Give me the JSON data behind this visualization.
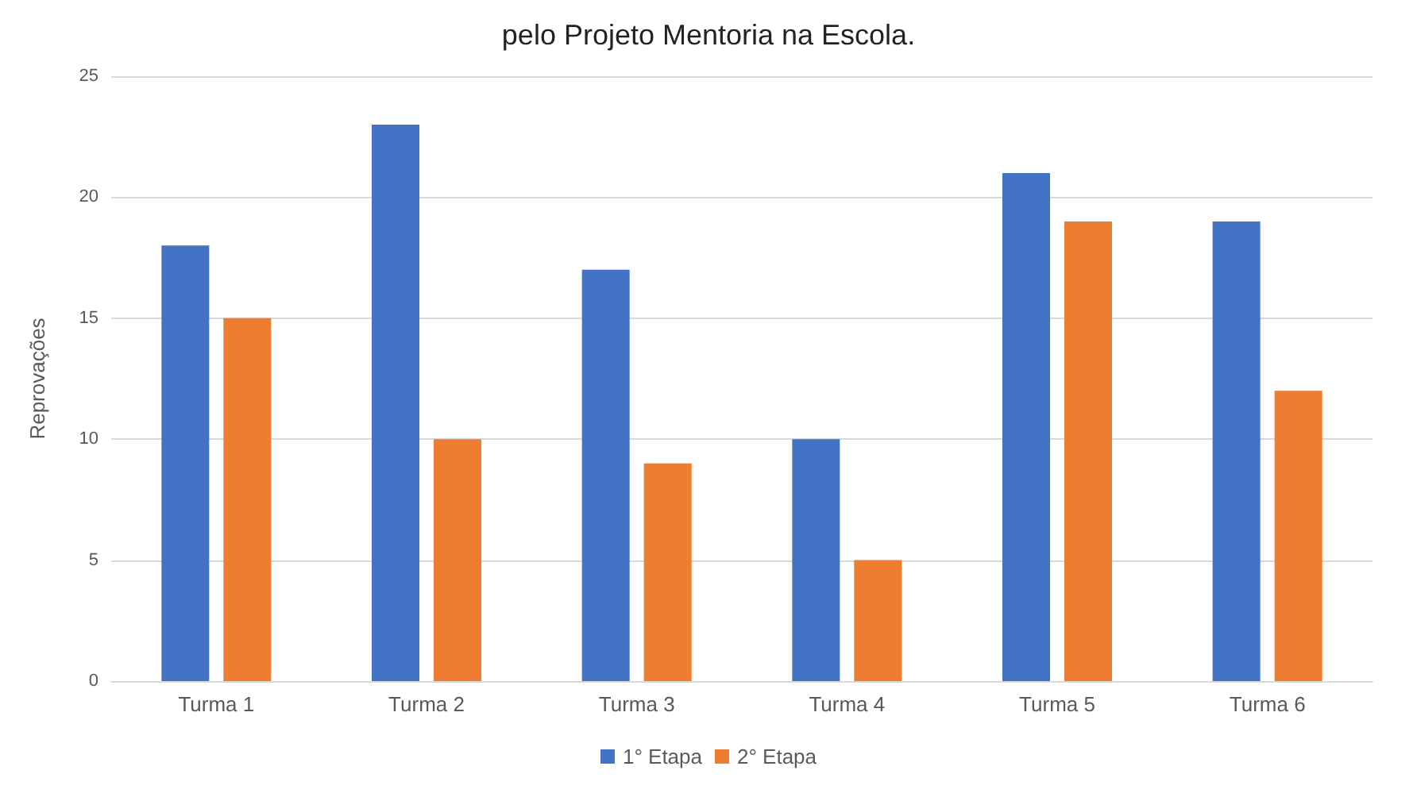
{
  "chart_data": {
    "type": "bar",
    "title": "pelo Projeto Mentoria na Escola.",
    "ylabel": "Reprovações",
    "categories": [
      "Turma 1",
      "Turma 2",
      "Turma 3",
      "Turma 4",
      "Turma 5",
      "Turma 6"
    ],
    "series": [
      {
        "name": "1° Etapa",
        "color": "#4472c4",
        "values": [
          18,
          23,
          17,
          10,
          21,
          19
        ]
      },
      {
        "name": "2° Etapa",
        "color": "#ed7d31",
        "values": [
          15,
          10,
          9,
          5,
          19,
          12
        ]
      }
    ],
    "ylim": [
      0,
      25
    ],
    "yticks": [
      0,
      5,
      10,
      15,
      20,
      25
    ],
    "grid": "y",
    "legend": "bottom"
  }
}
